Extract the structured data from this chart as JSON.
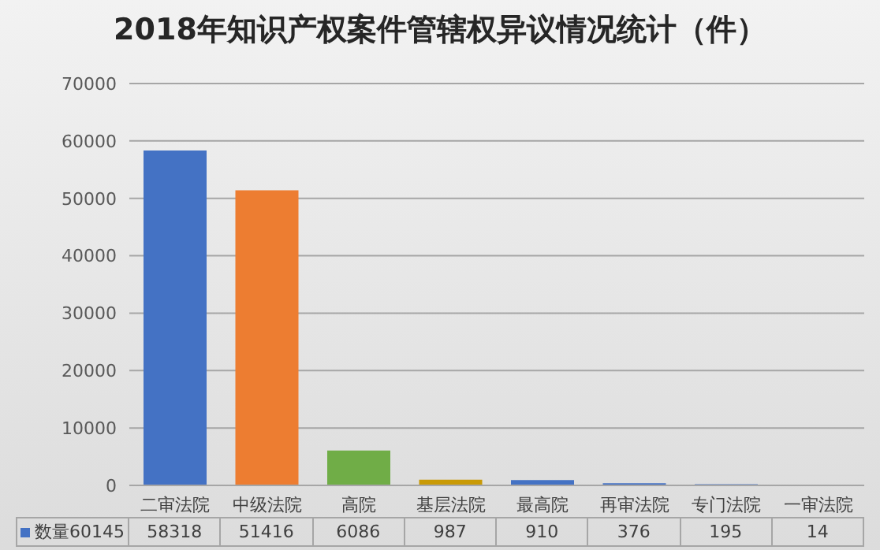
{
  "chart_data": {
    "type": "bar",
    "title": "2018年知识产权案件管辖权异议情况统计（件）",
    "categories": [
      "二审法院",
      "中级法院",
      "高院",
      "基层法院",
      "最高院",
      "再审法院",
      "专门法院",
      "一审法院"
    ],
    "series": [
      {
        "name": "数量60145",
        "color": "#4472c4",
        "colors": [
          "#4472c4",
          "#ed7d31",
          "#70ad47",
          "#c99a06",
          "#4472c4",
          "#4472c4",
          "#4472c4",
          "#4472c4"
        ],
        "values": [
          58318,
          51416,
          6086,
          987,
          910,
          376,
          195,
          14
        ]
      }
    ],
    "ylim": [
      0,
      70000
    ],
    "yticks": [
      0,
      10000,
      20000,
      30000,
      40000,
      50000,
      60000,
      70000
    ],
    "grid": "y",
    "data_labels": true
  }
}
